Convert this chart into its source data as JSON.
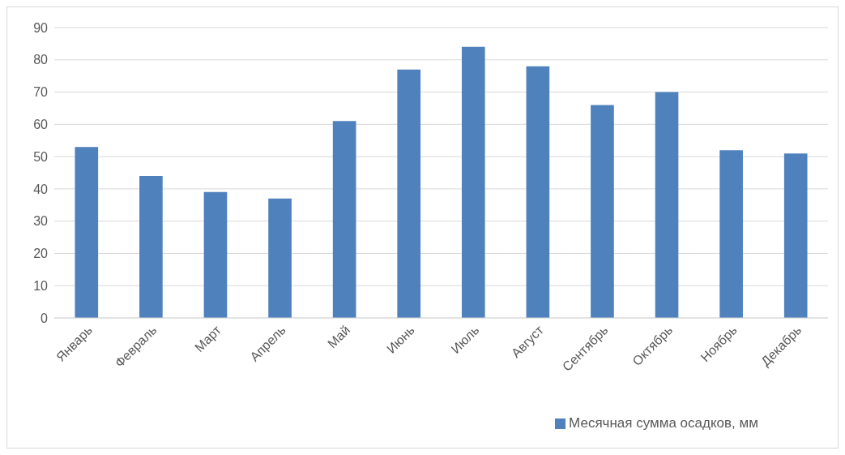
{
  "chart_data": {
    "type": "bar",
    "categories": [
      "Январь",
      "Февраль",
      "Март",
      "Апрель",
      "Май",
      "Июнь",
      "Июль",
      "Август",
      "Сентябрь",
      "Октябрь",
      "Ноябрь",
      "Декабрь"
    ],
    "series": [
      {
        "name": "Месячная сумма осадков, мм",
        "color": "#4f81bd",
        "values": [
          53,
          44,
          39,
          37,
          61,
          77,
          84,
          78,
          66,
          70,
          52,
          51
        ]
      }
    ],
    "ylim": [
      0,
      90
    ],
    "yticks": [
      0,
      10,
      20,
      30,
      40,
      50,
      60,
      70,
      80,
      90
    ],
    "grid": "y",
    "legend": "bottom"
  }
}
